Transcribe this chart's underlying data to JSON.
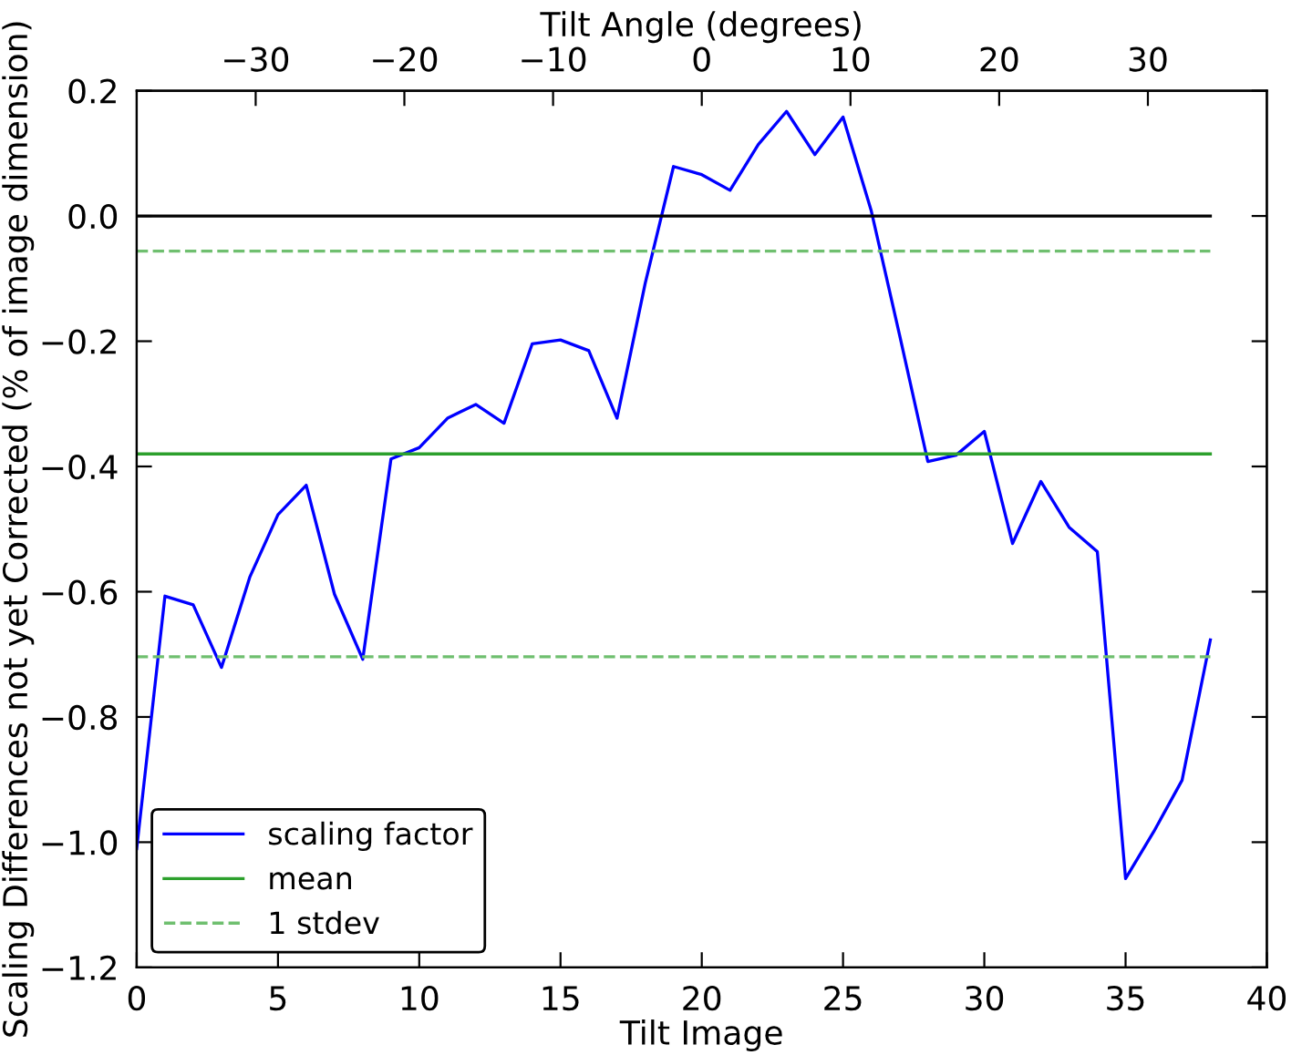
{
  "chart_data": {
    "type": "line",
    "xlabel": "Tilt Image",
    "ylabel": "Scaling Differences not yet Corrected (% of image dimension)",
    "x2label": "Tilt Angle (degrees)",
    "series": [
      {
        "name": "scaling factor",
        "color": "#0000ff",
        "x": [
          0,
          1,
          2,
          3,
          4,
          5,
          6,
          7,
          8,
          9,
          10,
          11,
          12,
          13,
          14,
          15,
          16,
          17,
          18,
          19,
          20,
          21,
          22,
          23,
          24,
          25,
          26,
          27,
          28,
          29,
          30,
          31,
          32,
          33,
          34,
          35,
          36,
          37,
          38
        ],
        "values": [
          -1.01,
          -0.607,
          -0.621,
          -0.721,
          -0.577,
          -0.477,
          -0.43,
          -0.604,
          -0.708,
          -0.388,
          -0.37,
          -0.323,
          -0.301,
          -0.331,
          -0.204,
          -0.198,
          -0.215,
          -0.323,
          -0.107,
          0.079,
          0.066,
          0.041,
          0.114,
          0.167,
          0.098,
          0.158,
          0.008,
          -0.19,
          -0.392,
          -0.382,
          -0.344,
          -0.523,
          -0.424,
          -0.497,
          -0.536,
          -1.058,
          -0.983,
          -0.901,
          -0.677
        ]
      },
      {
        "color": "#000000",
        "x": [
          0,
          38
        ],
        "values": [
          0,
          0
        ]
      },
      {
        "name": "mean",
        "color": "#2ca02c",
        "x": [
          0,
          38
        ],
        "values": [
          -0.38,
          -0.38
        ]
      },
      {
        "name": "1 stdev",
        "color": "#6fbf6f",
        "line_style": "dashed",
        "x": [
          0,
          38
        ],
        "values": [
          -0.056,
          -0.056
        ]
      },
      {
        "color": "#6fbf6f",
        "line_style": "dashed",
        "x": [
          0,
          38
        ],
        "values": [
          -0.704,
          -0.704
        ]
      }
    ],
    "xlim": [
      0,
      40
    ],
    "xticks": [
      0,
      5,
      10,
      15,
      20,
      25,
      30,
      35,
      40
    ],
    "ylim": [
      -1.2,
      0.2
    ],
    "yticks": [
      {
        "value": -1.2,
        "label": "−1.2"
      },
      {
        "value": -1.0,
        "label": "−1.0"
      },
      {
        "value": -0.8,
        "label": "−0.8"
      },
      {
        "value": -0.6,
        "label": "−0.6"
      },
      {
        "value": -0.4,
        "label": "−0.4"
      },
      {
        "value": -0.2,
        "label": "−0.2"
      },
      {
        "value": 0.0,
        "label": "0.0"
      },
      {
        "value": 0.2,
        "label": "0.2"
      }
    ],
    "x2lim": [
      -38,
      38
    ],
    "x2ticks": [
      {
        "value": -30,
        "label": "−30"
      },
      {
        "value": -20,
        "label": "−20"
      },
      {
        "value": -10,
        "label": "−10"
      },
      {
        "value": 0,
        "label": "0"
      },
      {
        "value": 10,
        "label": "10"
      },
      {
        "value": 20,
        "label": "20"
      },
      {
        "value": 30,
        "label": "30"
      }
    ],
    "legend": "lower left",
    "grid": false
  }
}
